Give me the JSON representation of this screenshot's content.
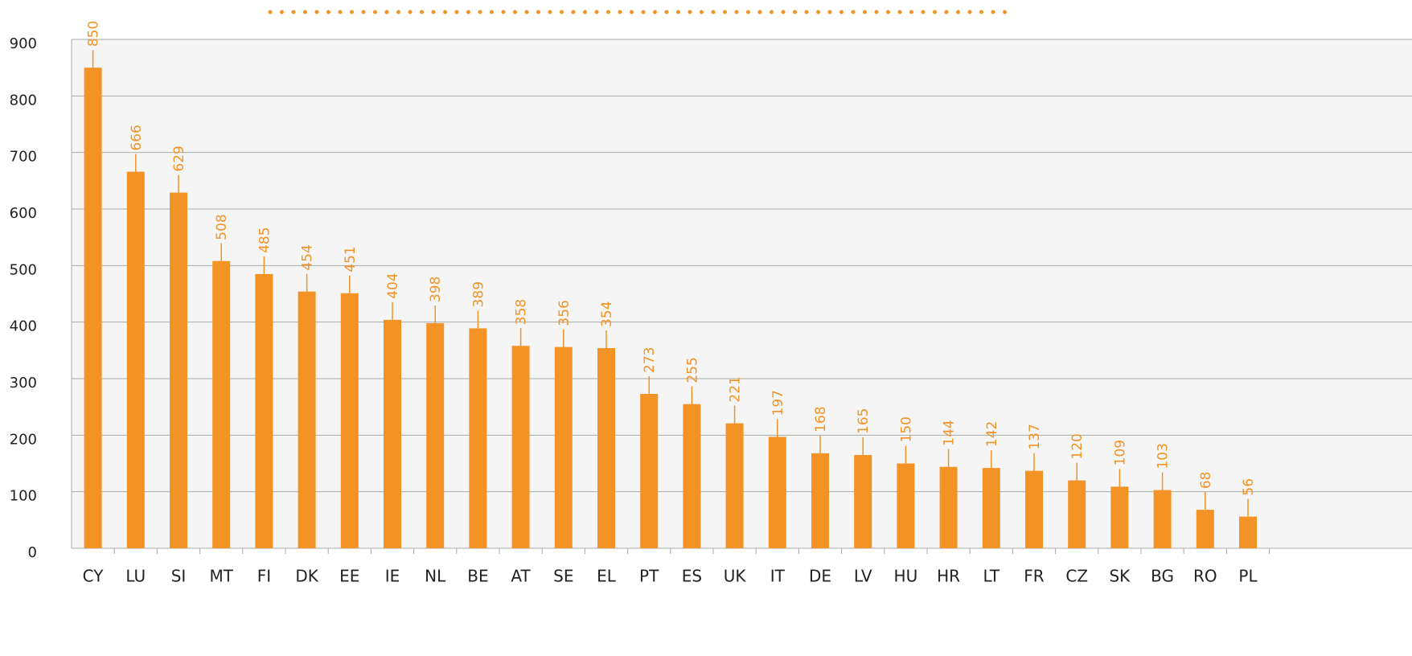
{
  "chart_data": {
    "type": "bar",
    "categories": [
      "CY",
      "LU",
      "SI",
      "MT",
      "FI",
      "DK",
      "EE",
      "IE",
      "NL",
      "BE",
      "AT",
      "SE",
      "EL",
      "PT",
      "ES",
      "UK",
      "IT",
      "DE",
      "LV",
      "HU",
      "HR",
      "LT",
      "FR",
      "CZ",
      "SK",
      "BG",
      "RO",
      "PL"
    ],
    "values": [
      850,
      666,
      629,
      508,
      485,
      454,
      451,
      404,
      398,
      389,
      358,
      356,
      354,
      273,
      255,
      221,
      197,
      168,
      165,
      150,
      144,
      142,
      137,
      120,
      109,
      103,
      68,
      56
    ],
    "color": "#f39325",
    "ylim": [
      0,
      900
    ],
    "yticks": [
      0,
      100,
      200,
      300,
      400,
      500,
      600,
      700,
      800,
      900
    ],
    "grid": true
  }
}
